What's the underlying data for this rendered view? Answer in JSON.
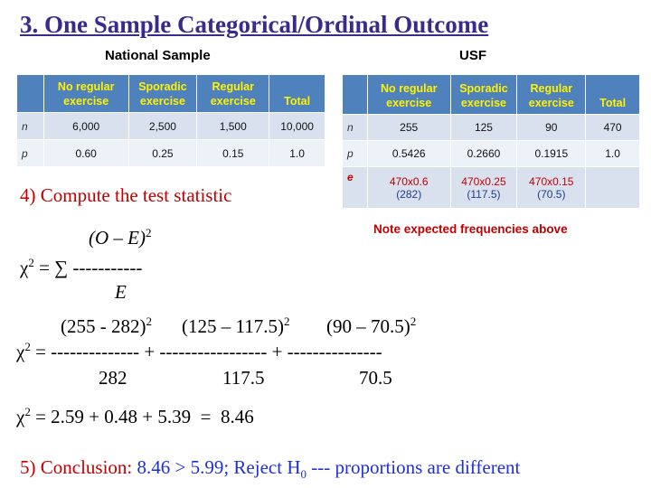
{
  "title": "3. One Sample Categorical/Ordinal Outcome",
  "national": {
    "caption": "National Sample",
    "headers": [
      "",
      "No regular exercise",
      "Sporadic exercise",
      "Regular exercise",
      "Total"
    ],
    "rows": [
      {
        "label": "n",
        "cells": [
          "6,000",
          "2,500",
          "1,500",
          "10,000"
        ]
      },
      {
        "label": "p",
        "cells": [
          "0.60",
          "0.25",
          "0.15",
          "1.0"
        ]
      }
    ]
  },
  "usf": {
    "caption": "USF",
    "headers": [
      "",
      "No regular exercise",
      "Sporadic exercise",
      "Regular exercise",
      "Total"
    ],
    "rows": [
      {
        "label": "n",
        "cells": [
          "255",
          "125",
          "90",
          "470"
        ]
      },
      {
        "label": "p",
        "cells": [
          "0.5426",
          "0.2660",
          "0.1915",
          "1.0"
        ]
      }
    ],
    "expected_row": {
      "label": "e",
      "cells": [
        {
          "calc": "470x0.6",
          "value": "(282)"
        },
        {
          "calc": "470x0.25",
          "value": "(117.5)"
        },
        {
          "calc": "470x0.15",
          "value": "(70.5)"
        },
        {
          "calc": "",
          "value": ""
        }
      ]
    }
  },
  "note": "Note expected frequencies above",
  "step4": "4)  Compute the test statistic",
  "formula": {
    "numerator": "(O – E)",
    "lhs": "χ",
    "sum_dashes": " = ∑ -----------",
    "denominator": "E"
  },
  "calc": {
    "num1": "(255 - 282)",
    "num2": "(125 – 117.5)",
    "num3": "(90 – 70.5)",
    "dash_line": " = -------------- + ----------------- + ---------------",
    "den1": "282",
    "den2": "117.5",
    "den3": "70.5",
    "result_line": " = 2.59 + 0.48 + 5.39  =  8.46"
  },
  "conclusion": {
    "label": "5)  Conclusion:",
    "comparison": "8.46 > 5.99;  Reject H",
    "h_sub": "0",
    "rest": "  --- proportions are different"
  },
  "colors": {
    "title": "#3b2a8c",
    "header_bg": "#4f81bd",
    "header_text": "#fff200",
    "step_red": "#c00000",
    "conclusion_blue": "#1f2fd8"
  }
}
